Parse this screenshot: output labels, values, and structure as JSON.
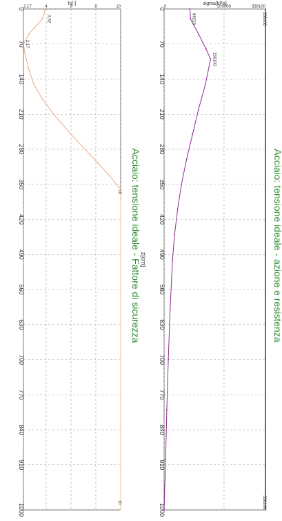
{
  "chart_data": [
    {
      "type": "line",
      "title": "Acciaio: tensione ideale - Fattore di sicurezza",
      "xlabel": "z[cm]",
      "ylabel": "fs[-]",
      "xlim": [
        0,
        1000
      ],
      "ylim": [
        2.17,
        10
      ],
      "x_ticks": [
        "0",
        "70",
        "140",
        "210",
        "280",
        "350",
        "420",
        "490",
        "560",
        "630",
        "700",
        "770",
        "840",
        "910",
        "1000"
      ],
      "x_tick_values": [
        0,
        70,
        140,
        210,
        280,
        350,
        420,
        490,
        560,
        630,
        700,
        770,
        840,
        910,
        1000
      ],
      "y_ticks": [
        "2.17",
        "4",
        "6",
        "8",
        "10"
      ],
      "y_tick_values": [
        2.17,
        4,
        6,
        8,
        10
      ],
      "grid": true,
      "series": [
        {
          "name": "",
          "color": "#e8a98a",
          "x": [
            0,
            20,
            50,
            70,
            90,
            120,
            150,
            180,
            210,
            250,
            290,
            330,
            360,
            380
          ],
          "y": [
            3.92,
            3.7,
            2.6,
            2.17,
            2.3,
            2.6,
            3.0,
            3.7,
            4.6,
            6.0,
            7.5,
            9.0,
            10.0,
            10.0
          ]
        },
        {
          "name": "",
          "color": "#e8c8a0",
          "x": [
            380,
            1000
          ],
          "y": [
            10,
            10
          ]
        }
      ],
      "annotations": [
        {
          "text": "3.92",
          "x": 20,
          "y": 3.92
        },
        {
          "text": "2.17",
          "x": 70,
          "y": 2.17
        },
        {
          "text": "10",
          "x": 365,
          "y": 10
        },
        {
          "text": "10",
          "x": 985,
          "y": 10
        }
      ]
    },
    {
      "type": "line",
      "title": "Acciaio: tensione ideale - azione e resistenza",
      "xlabel": "z[cm]",
      "ylabel": "sigma[kPa]",
      "xlim": [
        0,
        1000
      ],
      "ylim": [
        0,
        338100
      ],
      "x_ticks": [
        "0",
        "70",
        "140",
        "210",
        "280",
        "350",
        "420",
        "490",
        "560",
        "630",
        "700",
        "770",
        "840",
        "910",
        "1000"
      ],
      "x_tick_values": [
        0,
        70,
        140,
        210,
        280,
        350,
        420,
        490,
        560,
        630,
        700,
        770,
        840,
        910,
        1000
      ],
      "y_ticks": [
        "0",
        "200000",
        "338100"
      ],
      "y_tick_values": [
        0,
        200000,
        338100
      ],
      "grid": true,
      "series": [
        {
          "name": "",
          "color": "#8a2a90",
          "x": [
            0,
            20,
            50,
            80,
            100,
            150,
            200,
            250,
            300,
            350,
            400,
            450,
            500,
            600,
            700,
            800,
            900,
            1000
          ],
          "y": [
            86220,
            88000,
            115000,
            140000,
            155000,
            138000,
            115000,
            95000,
            75000,
            58000,
            45000,
            35000,
            28000,
            20000,
            14000,
            9000,
            5000,
            0
          ]
        },
        {
          "name": "",
          "color": "#3a3ad0",
          "x": [
            0,
            1000
          ],
          "y": [
            338100,
            338100
          ]
        }
      ],
      "annotations": [
        {
          "text": "86220",
          "x": 20,
          "y": 86220
        },
        {
          "text": "155100",
          "x": 100,
          "y": 155100
        },
        {
          "text": "338100",
          "x": 20,
          "y": 338100
        },
        {
          "text": "338100",
          "x": 985,
          "y": 338100
        }
      ]
    }
  ]
}
